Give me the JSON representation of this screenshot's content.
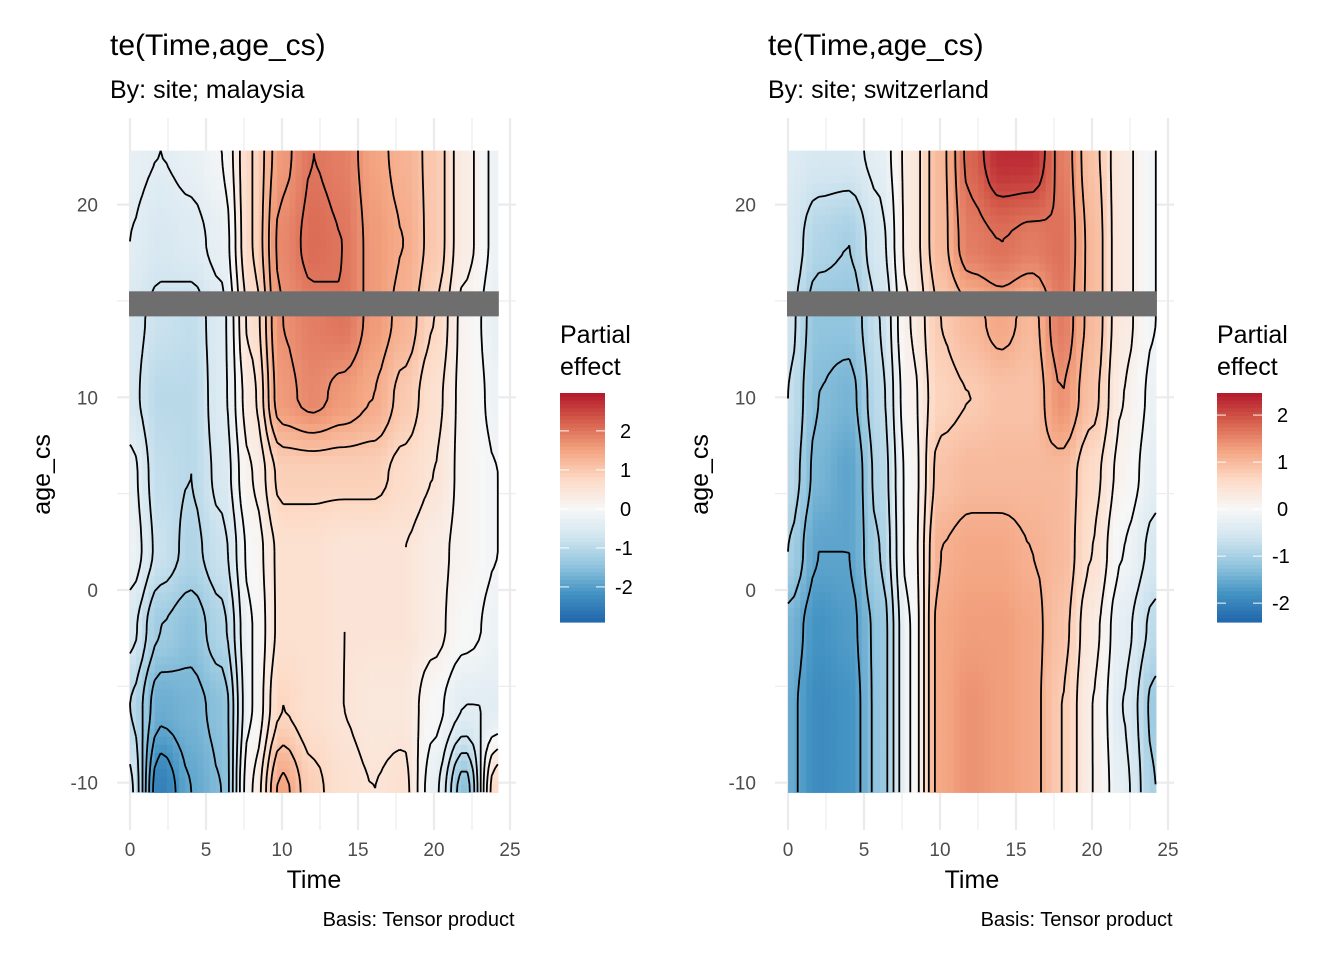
{
  "chart_data": [
    {
      "type": "heatmap",
      "title": "te(Time,age_cs)",
      "subtitle": "By: site; malaysia",
      "caption": "Basis: Tensor product",
      "xlabel": "Time",
      "ylabel": "age_cs",
      "xlim": [
        0,
        25
      ],
      "ylim": [
        -12,
        24
      ],
      "x_ticks": [
        "0",
        "5",
        "10",
        "15",
        "20",
        "25"
      ],
      "y_ticks": [
        "-10",
        "0",
        "10",
        "20"
      ],
      "grid": true,
      "contours": true,
      "masked_band": [
        14.2,
        15.5
      ],
      "legend": {
        "title_line1": "Partial",
        "title_line2": "effect",
        "position": "right",
        "ticks": [
          "2",
          "1",
          "0",
          "-1",
          "-2"
        ],
        "limits": [
          -2.9,
          2.97
        ]
      },
      "x": [
        0,
        2,
        4,
        6,
        8,
        10,
        12,
        14,
        16,
        18,
        20,
        22,
        24.2
      ],
      "y": [
        -10.5,
        -6,
        -2,
        2,
        6,
        10,
        14,
        18,
        22.8
      ],
      "z": [
        [
          -0.6,
          -2.5,
          -1.9,
          -1.6,
          0.2,
          1.5,
          0.9,
          0.6,
          0.5,
          0.6,
          -0.3,
          -1.5,
          0.8
        ],
        [
          -1.0,
          -1.8,
          -1.7,
          -1.5,
          -0.1,
          0.8,
          0.6,
          0.5,
          0.4,
          0.4,
          0.0,
          -0.4,
          -0.4
        ],
        [
          -0.6,
          -1.3,
          -1.5,
          -1.1,
          -0.1,
          0.6,
          0.6,
          0.5,
          0.5,
          0.5,
          0.3,
          0.0,
          -0.2
        ],
        [
          -0.2,
          -0.8,
          -1.1,
          -0.8,
          0.0,
          0.6,
          0.6,
          0.5,
          0.5,
          0.5,
          0.3,
          0.1,
          -0.1
        ],
        [
          -0.3,
          -0.9,
          -1.0,
          -0.6,
          0.2,
          0.9,
          0.9,
          0.9,
          0.9,
          0.7,
          0.5,
          0.1,
          -0.1
        ],
        [
          -0.6,
          -1.0,
          -1.0,
          -0.5,
          0.4,
          1.6,
          1.8,
          1.6,
          1.4,
          1.0,
          0.6,
          0.1,
          -0.2
        ],
        [
          -0.6,
          -0.8,
          -0.9,
          -0.5,
          0.6,
          1.7,
          1.9,
          2.0,
          1.6,
          1.3,
          0.8,
          0.1,
          -0.3
        ],
        [
          -0.4,
          -0.6,
          -0.5,
          -0.3,
          0.8,
          1.8,
          2.1,
          2.0,
          1.6,
          1.4,
          1.0,
          0.3,
          -0.2
        ],
        [
          -0.3,
          -0.4,
          -0.3,
          -0.1,
          0.8,
          1.6,
          2.0,
          1.9,
          1.5,
          1.3,
          1.0,
          0.3,
          -0.2
        ]
      ]
    },
    {
      "type": "heatmap",
      "title": "te(Time,age_cs)",
      "subtitle": "By: site; switzerland",
      "caption": "Basis: Tensor product",
      "xlabel": "Time",
      "ylabel": "age_cs",
      "xlim": [
        0,
        25
      ],
      "ylim": [
        -12,
        24
      ],
      "x_ticks": [
        "0",
        "5",
        "10",
        "15",
        "20",
        "25"
      ],
      "y_ticks": [
        "-10",
        "0",
        "10",
        "20"
      ],
      "grid": true,
      "contours": true,
      "masked_band": [
        14.2,
        15.5
      ],
      "legend": {
        "title_line1": "Partial",
        "title_line2": "effect",
        "position": "right",
        "ticks": [
          "2",
          "1",
          "0",
          "-1",
          "-2"
        ],
        "limits": [
          -2.4,
          2.47
        ]
      },
      "x": [
        0,
        2,
        4,
        6,
        8,
        10,
        12,
        14,
        16,
        18,
        20,
        22,
        24.2
      ],
      "y": [
        -10.5,
        -6,
        -2,
        2,
        6,
        10,
        14,
        18,
        22.8
      ],
      "z": [
        [
          -1.5,
          -1.9,
          -1.8,
          -1.2,
          -0.1,
          1.2,
          1.4,
          1.3,
          1.2,
          0.8,
          0.2,
          -0.3,
          -1.0
        ],
        [
          -1.5,
          -1.9,
          -1.8,
          -1.2,
          -0.1,
          1.2,
          1.4,
          1.3,
          1.2,
          0.8,
          0.2,
          -0.4,
          -1.1
        ],
        [
          -1.4,
          -1.8,
          -1.7,
          -1.2,
          -0.1,
          1.2,
          1.3,
          1.3,
          1.2,
          0.9,
          0.3,
          -0.3,
          -0.8
        ],
        [
          -1.0,
          -1.6,
          -1.6,
          -1.0,
          0.0,
          1.1,
          1.2,
          1.2,
          1.1,
          1.0,
          0.5,
          -0.1,
          -0.5
        ],
        [
          -0.8,
          -1.4,
          -1.6,
          -0.9,
          0.0,
          0.9,
          1.0,
          1.0,
          1.0,
          1.0,
          0.6,
          0.1,
          -0.3
        ],
        [
          -0.7,
          -1.3,
          -1.4,
          -0.8,
          0.1,
          0.7,
          0.8,
          0.9,
          0.9,
          1.4,
          0.9,
          0.2,
          -0.2
        ],
        [
          -0.6,
          -1.2,
          -1.2,
          -0.7,
          0.2,
          0.8,
          1.0,
          1.2,
          1.0,
          1.6,
          1.0,
          0.3,
          -0.1
        ],
        [
          -0.5,
          -0.9,
          -1.0,
          -0.5,
          0.3,
          1.0,
          1.6,
          1.7,
          1.6,
          1.7,
          1.0,
          0.3,
          -0.1
        ],
        [
          -0.4,
          -0.5,
          -0.5,
          -0.3,
          0.3,
          1.0,
          1.8,
          2.3,
          2.3,
          1.6,
          0.9,
          0.3,
          -0.1
        ]
      ]
    }
  ],
  "colors": {
    "palette": [
      "#2166AC",
      "#4393C3",
      "#92C5DE",
      "#D1E5F0",
      "#F7F7F7",
      "#FDDBC7",
      "#F4A582",
      "#D6604D",
      "#B2182B"
    ],
    "band": "#6E6E6E",
    "contour": "#000000",
    "grid": "#EBEBEB"
  }
}
